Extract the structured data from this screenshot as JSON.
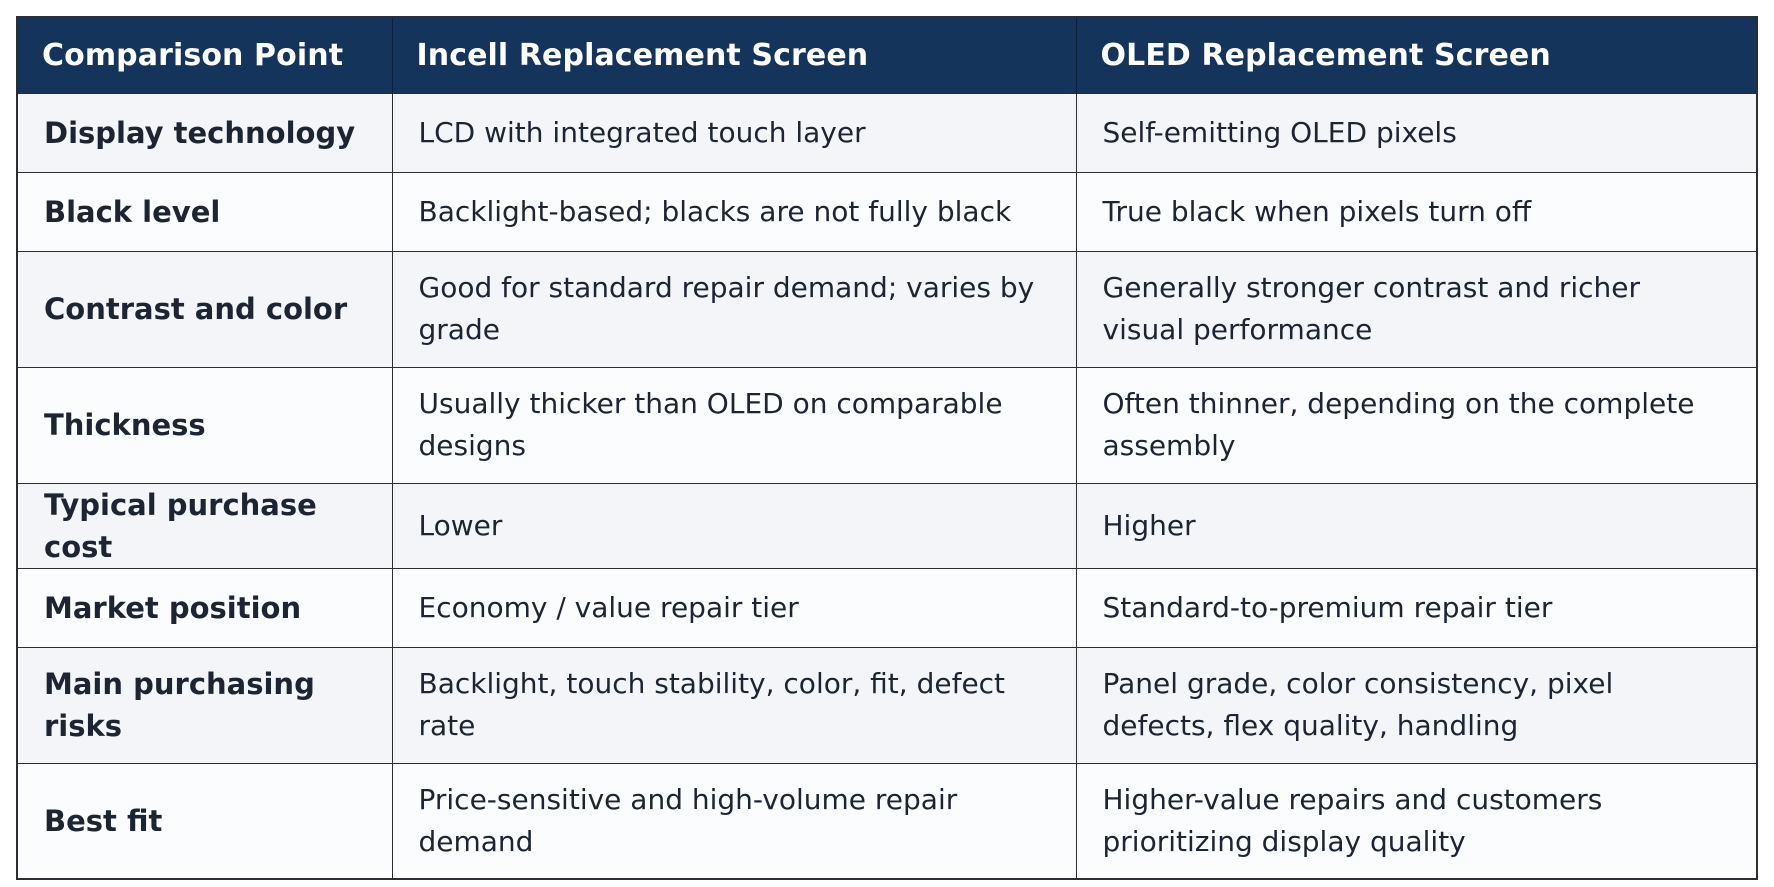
{
  "table": {
    "headers": [
      "Comparison Point",
      "Incell Replacement Screen",
      "OLED Replacement Screen"
    ],
    "rows": [
      {
        "point": "Display technology",
        "incell": "LCD with integrated touch layer",
        "oled": "Self-emitting OLED pixels"
      },
      {
        "point": "Black level",
        "incell": "Backlight-based; blacks are not fully black",
        "oled": "True black when pixels turn off"
      },
      {
        "point": "Contrast and color",
        "incell": "Good for standard repair demand; varies by grade",
        "oled": "Generally stronger contrast and richer visual performance"
      },
      {
        "point": "Thickness",
        "incell": "Usually thicker than OLED on comparable designs",
        "oled": "Often thinner, depending on the complete assembly"
      },
      {
        "point": "Typical purchase cost",
        "incell": "Lower",
        "oled": "Higher"
      },
      {
        "point": "Market position",
        "incell": "Economy / value repair tier",
        "oled": "Standard-to-premium repair tier"
      },
      {
        "point": "Main purchasing risks",
        "incell": "Backlight, touch stability, color, fit, defect rate",
        "oled": "Panel grade, color consistency, pixel defects, flex quality, handling"
      },
      {
        "point": "Best fit",
        "incell": "Price-sensitive and high-volume repair demand",
        "oled": "Higher-value repairs and customers prioritizing display quality"
      }
    ]
  },
  "colors": {
    "header_bg": "#14345c",
    "header_text": "#ffffff",
    "row_bg_a": "#f3f5f8",
    "row_bg_b": "#fbfcfd",
    "border": "#2a2f36"
  }
}
